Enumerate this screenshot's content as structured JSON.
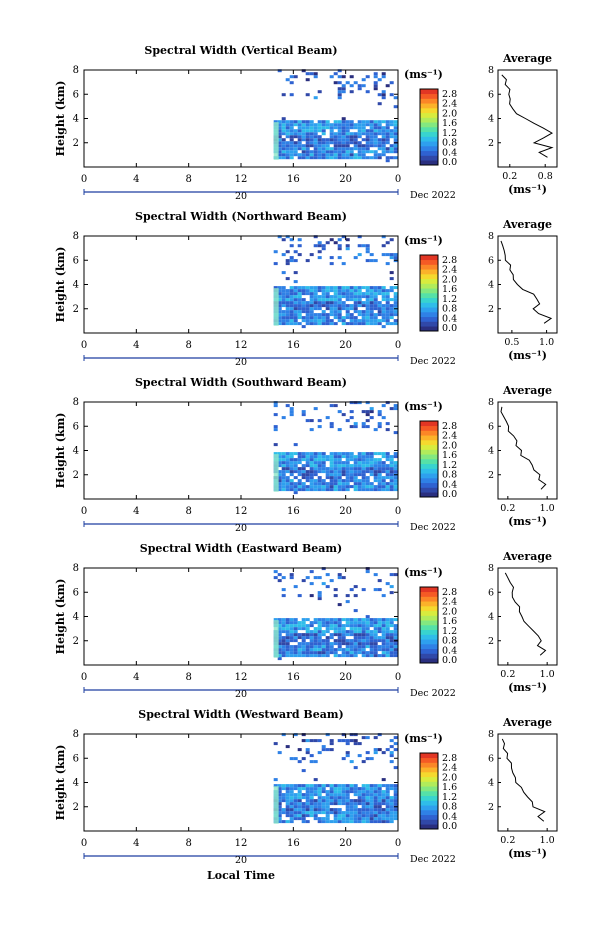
{
  "colors": [
    "#2a2f7f",
    "#3048a8",
    "#2f62d1",
    "#2f81e6",
    "#2ea0ee",
    "#2fbde9",
    "#38d4cf",
    "#55e1a8",
    "#83e880",
    "#b1ec5b",
    "#d8ec3e",
    "#f5d92e",
    "#fbb22a",
    "#fb8627",
    "#f55a25",
    "#e23624"
  ],
  "colorbar": {
    "unit": "(ms⁻¹)",
    "ticks": [
      "0.0",
      "0.4",
      "0.8",
      "1.2",
      "1.6",
      "2.0",
      "2.4",
      "2.8"
    ]
  },
  "xaxis": {
    "ticks": [
      "0",
      "4",
      "8",
      "12",
      "16",
      "20",
      "0"
    ],
    "day_label": "20",
    "date_label": "Dec 2022",
    "label": "Local Time"
  },
  "yaxis_label": "Height (km)",
  "yticks": [
    "2",
    "4",
    "6",
    "8"
  ],
  "avg_title": "Average",
  "avg_xlabel": "(ms⁻¹)",
  "panels": [
    {
      "title": "Spectral Width (Vertical Beam)",
      "avg_ticks": [
        "0.2",
        "0.8"
      ],
      "avg_xlim": [
        0.0,
        1.0
      ]
    },
    {
      "title": "Spectral Width (Northward Beam)",
      "avg_ticks": [
        "0.5",
        "1.0"
      ],
      "avg_xlim": [
        0.3,
        1.15
      ]
    },
    {
      "title": "Spectral Width (Southward Beam)",
      "avg_ticks": [
        "0.2",
        "1.0"
      ],
      "avg_xlim": [
        0.0,
        1.2
      ]
    },
    {
      "title": "Spectral Width (Eastward Beam)",
      "avg_ticks": [
        "0.2",
        "1.0"
      ],
      "avg_xlim": [
        0.0,
        1.2
      ]
    },
    {
      "title": "Spectral Width (Westward Beam)",
      "avg_ticks": [
        "0.2",
        "1.0"
      ],
      "avg_xlim": [
        0.0,
        1.2
      ]
    }
  ],
  "chart_data": {
    "type": "heatmap",
    "x_range_hours": [
      0,
      24
    ],
    "y_range_km": [
      0,
      8
    ],
    "color_range_ms": [
      0.0,
      2.8
    ],
    "data_start_hour": 14.5,
    "layers": [
      {
        "from_km": 0.5,
        "to_km": 1.5,
        "typical_ms": 0.6
      },
      {
        "from_km": 1.5,
        "to_km": 2.4,
        "typical_ms": 0.5
      },
      {
        "from_km": 2.4,
        "to_km": 3.7,
        "typical_ms": 0.7
      },
      {
        "from_km": 5.5,
        "to_km": 7.9,
        "typical_ms": 0.4
      }
    ],
    "average_profile": {
      "height_km": [
        0.8,
        1.2,
        1.6,
        2.0,
        2.4,
        2.8,
        3.2,
        3.6,
        4.0,
        4.4,
        4.8,
        5.2,
        5.6,
        6.0,
        6.4,
        6.8,
        7.2,
        7.6
      ],
      "vertical": [
        0.85,
        0.7,
        0.9,
        0.65,
        0.8,
        0.9,
        0.75,
        0.6,
        0.45,
        0.3,
        0.25,
        0.2,
        0.22,
        0.15,
        0.18,
        0.1,
        0.12,
        0.08
      ],
      "northward": [
        0.95,
        1.05,
        0.85,
        0.8,
        0.9,
        0.85,
        0.8,
        0.65,
        0.6,
        0.55,
        0.5,
        0.48,
        0.45,
        0.42,
        0.4,
        0.38,
        0.36,
        0.35
      ],
      "southward": [
        0.9,
        1.0,
        0.8,
        0.85,
        0.75,
        0.7,
        0.6,
        0.5,
        0.45,
        0.4,
        0.35,
        0.3,
        0.25,
        0.2,
        0.18,
        0.12,
        0.1,
        0.08
      ],
      "eastward": [
        0.85,
        0.95,
        0.8,
        0.9,
        0.8,
        0.7,
        0.6,
        0.55,
        0.5,
        0.45,
        0.4,
        0.35,
        0.32,
        0.3,
        0.28,
        0.25,
        0.2,
        0.15
      ],
      "westward": [
        0.9,
        0.8,
        0.95,
        0.75,
        0.7,
        0.6,
        0.5,
        0.45,
        0.4,
        0.35,
        0.3,
        0.28,
        0.25,
        0.2,
        0.18,
        0.12,
        0.1,
        0.06
      ]
    }
  }
}
